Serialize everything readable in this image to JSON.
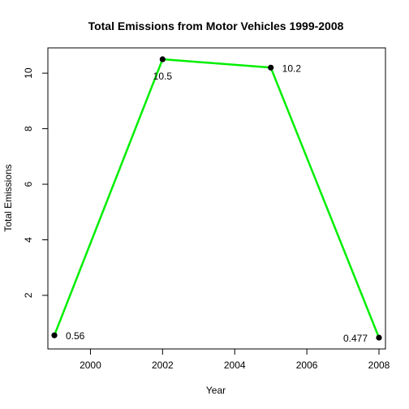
{
  "chart_data": {
    "type": "line",
    "title": "Total Emissions from Motor Vehicles 1999-2008",
    "xlabel": "Year",
    "ylabel": "Total Emissions",
    "x": [
      1999,
      2002,
      2005,
      2008
    ],
    "series": [
      {
        "values": [
          0.56,
          10.5,
          10.2,
          0.477
        ]
      }
    ],
    "data_labels": [
      "0.56",
      "10.5",
      "10.2",
      "0.477"
    ],
    "xticks": [
      2000,
      2002,
      2004,
      2006,
      2008
    ],
    "yticks": [
      2,
      4,
      6,
      8,
      10
    ],
    "xlim": [
      1998.82,
      2008.18
    ],
    "ylim": [
      0.07,
      10.91
    ],
    "line_color": "#00ee00",
    "point_color": "#000000",
    "grid": false,
    "legend": "none"
  }
}
